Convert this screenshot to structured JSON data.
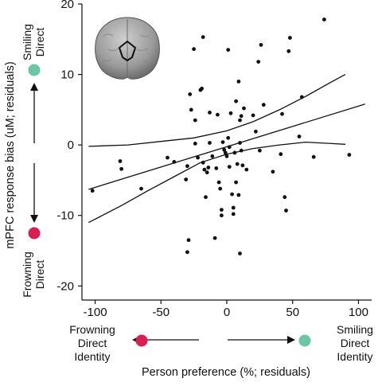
{
  "chart_data": {
    "type": "scatter",
    "xlabel": "Person preference (%; residuals)",
    "ylabel": "mPFC response bias (uM; residuals)",
    "xlim": [
      -110,
      110
    ],
    "ylim": [
      -22,
      20
    ],
    "xticks": [
      -100,
      -50,
      0,
      50,
      100
    ],
    "yticks": [
      -20,
      -10,
      0,
      10,
      20
    ],
    "grid": false,
    "points": [
      [
        -102,
        -6.5
      ],
      [
        -81,
        -2.3
      ],
      [
        -80,
        -3.4
      ],
      [
        -65,
        -6.2
      ],
      [
        -45,
        -1.8
      ],
      [
        -40,
        -2.4
      ],
      [
        -30,
        -15.2
      ],
      [
        -29,
        -13.5
      ],
      [
        -31,
        -4.9
      ],
      [
        -30,
        -3.0
      ],
      [
        -28,
        7.2
      ],
      [
        -27,
        5.0
      ],
      [
        -25,
        13.6
      ],
      [
        -24,
        3.5
      ],
      [
        -24,
        0.2
      ],
      [
        -22,
        -1.8
      ],
      [
        -20,
        7.8
      ],
      [
        -19,
        8.0
      ],
      [
        -18,
        15.3
      ],
      [
        -18,
        -2.5
      ],
      [
        -17,
        -3.5
      ],
      [
        -16,
        -7.4
      ],
      [
        -15,
        -3.9
      ],
      [
        -14,
        -3.2
      ],
      [
        -13,
        4.6
      ],
      [
        -13,
        0.3
      ],
      [
        -11,
        -1.6
      ],
      [
        -9,
        -13.2
      ],
      [
        -8,
        -3.3
      ],
      [
        -7,
        4.3
      ],
      [
        -6,
        -5.3
      ],
      [
        -5,
        -6.2
      ],
      [
        -4,
        -9.2
      ],
      [
        -4,
        -10.0
      ],
      [
        -3,
        0.4
      ],
      [
        -2,
        -0.7
      ],
      [
        -1,
        -1.1
      ],
      [
        0,
        -1.6
      ],
      [
        1,
        13.5
      ],
      [
        1,
        1.0
      ],
      [
        2,
        -0.3
      ],
      [
        2,
        -3.1
      ],
      [
        3,
        4.5
      ],
      [
        4,
        -7.0
      ],
      [
        5,
        -8.9
      ],
      [
        5,
        -9.8
      ],
      [
        6,
        -1.1
      ],
      [
        7,
        -5.3
      ],
      [
        7,
        6.2
      ],
      [
        8,
        -2.7
      ],
      [
        9,
        9.0
      ],
      [
        9,
        -7.1
      ],
      [
        10,
        3.5
      ],
      [
        10,
        0.3
      ],
      [
        10,
        -15.4
      ],
      [
        11,
        4.1
      ],
      [
        11,
        -0.8
      ],
      [
        12,
        -2.9
      ],
      [
        13,
        5.2
      ],
      [
        15,
        -3.5
      ],
      [
        20,
        4.2
      ],
      [
        22,
        1.9
      ],
      [
        24,
        11.8
      ],
      [
        25,
        -0.8
      ],
      [
        26,
        14.2
      ],
      [
        28,
        5.7
      ],
      [
        35,
        -3.8
      ],
      [
        41,
        -1.3
      ],
      [
        42,
        4.4
      ],
      [
        44,
        -7.4
      ],
      [
        45,
        -9.3
      ],
      [
        47,
        13.3
      ],
      [
        48,
        15.2
      ],
      [
        55,
        1.2
      ],
      [
        57,
        6.8
      ],
      [
        66,
        -1.7
      ],
      [
        74,
        17.8
      ],
      [
        93,
        -1.4
      ]
    ],
    "fit_line": {
      "x": [
        -105,
        105
      ],
      "y": [
        -6.3,
        5.8
      ]
    },
    "confidence_band": {
      "upper": {
        "x": [
          -105,
          -75,
          -50,
          -25,
          0,
          20,
          40,
          60,
          80,
          90
        ],
        "y": [
          -0.2,
          0.0,
          0.5,
          1.0,
          2.0,
          3.3,
          5.0,
          6.9,
          9.0,
          10.0
        ]
      },
      "lower": {
        "x": [
          -105,
          -80,
          -60,
          -40,
          -20,
          0,
          20,
          40,
          60,
          80,
          90
        ],
        "y": [
          -11.0,
          -8.6,
          -6.5,
          -4.5,
          -2.5,
          -1.3,
          -0.5,
          0.0,
          0.4,
          0.2,
          0.1
        ]
      }
    },
    "x_direction_labels": {
      "left": [
        "Frowning",
        "Direct",
        "Identity"
      ],
      "right": [
        "Smiling",
        "Direct",
        "Identity"
      ]
    },
    "y_direction_labels": {
      "top": [
        "Smiling",
        "Direct"
      ],
      "bottom": [
        "Frowning",
        "Direct"
      ]
    },
    "colors": {
      "positive": "#6cc6a3",
      "negative": "#d81f4f",
      "points": "#111111"
    }
  }
}
